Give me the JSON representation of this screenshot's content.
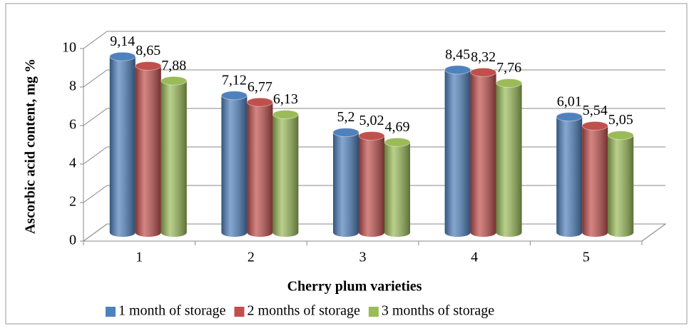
{
  "chart_data": {
    "type": "bar3d",
    "y_label": "Ascorbic acid content, mg %",
    "x_label": "Cherry plum varieties",
    "categories": [
      "1",
      "2",
      "3",
      "4",
      "5"
    ],
    "series": [
      {
        "name": "1 month of storage",
        "color": "#4f81bd",
        "values": [
          9.14,
          7.12,
          5.2,
          8.45,
          6.01
        ],
        "value_labels": [
          "9,14",
          "7,12",
          "5,2",
          "8,45",
          "6,01"
        ]
      },
      {
        "name": "2 months of storage",
        "color": "#c0504d",
        "values": [
          8.65,
          6.77,
          5.02,
          8.32,
          5.54
        ],
        "value_labels": [
          "8,65",
          "6,77",
          "5,02",
          "8,32",
          "5,54"
        ]
      },
      {
        "name": "3 months of storage",
        "color": "#9bbb59",
        "values": [
          7.88,
          6.13,
          4.69,
          7.76,
          5.05
        ],
        "value_labels": [
          "7,88",
          "6,13",
          "4,69",
          "7,76",
          "5,05"
        ]
      }
    ],
    "ylim": [
      0,
      10
    ],
    "yticks": [
      0,
      2,
      4,
      6,
      8,
      10
    ],
    "grid": true,
    "legend": "bottom"
  }
}
